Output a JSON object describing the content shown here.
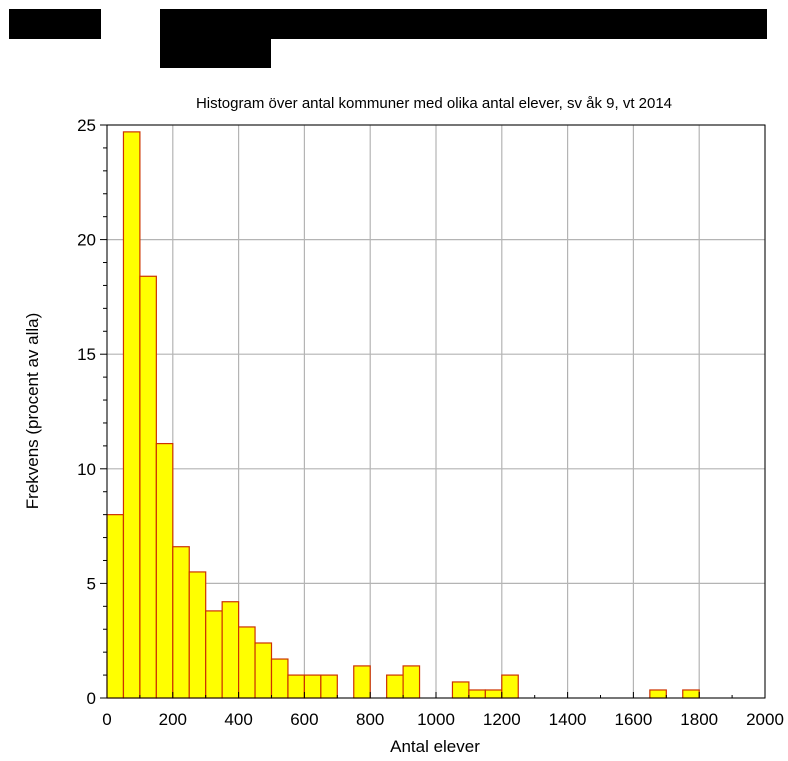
{
  "chart_data": {
    "type": "bar",
    "title": "Histogram över antal kommuner med olika antal elever, sv åk 9, vt 2014",
    "xlabel": "Antal elever",
    "ylabel": "Frekvens (procent av alla)",
    "xlim": [
      0,
      2000
    ],
    "ylim": [
      0,
      25
    ],
    "x_ticks": [
      "0",
      "200",
      "400",
      "600",
      "800",
      "1000",
      "1200",
      "1400",
      "1600",
      "1800",
      "2000"
    ],
    "y_ticks": [
      "0",
      "5",
      "10",
      "15",
      "20",
      "25"
    ],
    "grid": true,
    "bar_fill": "#ffff00",
    "bar_edge": "#cc3300",
    "bins": [
      {
        "x0": 0,
        "x1": 50,
        "value": 8.0
      },
      {
        "x0": 50,
        "x1": 100,
        "value": 24.7
      },
      {
        "x0": 100,
        "x1": 150,
        "value": 18.4
      },
      {
        "x0": 150,
        "x1": 200,
        "value": 11.1
      },
      {
        "x0": 200,
        "x1": 250,
        "value": 6.6
      },
      {
        "x0": 250,
        "x1": 300,
        "value": 5.5
      },
      {
        "x0": 300,
        "x1": 350,
        "value": 3.8
      },
      {
        "x0": 350,
        "x1": 400,
        "value": 4.2
      },
      {
        "x0": 400,
        "x1": 450,
        "value": 3.1
      },
      {
        "x0": 450,
        "x1": 500,
        "value": 2.4
      },
      {
        "x0": 500,
        "x1": 550,
        "value": 1.7
      },
      {
        "x0": 550,
        "x1": 600,
        "value": 1.0
      },
      {
        "x0": 600,
        "x1": 650,
        "value": 1.0
      },
      {
        "x0": 650,
        "x1": 700,
        "value": 1.0
      },
      {
        "x0": 750,
        "x1": 800,
        "value": 1.4
      },
      {
        "x0": 850,
        "x1": 900,
        "value": 1.0
      },
      {
        "x0": 900,
        "x1": 950,
        "value": 1.4
      },
      {
        "x0": 1050,
        "x1": 1100,
        "value": 0.7
      },
      {
        "x0": 1100,
        "x1": 1150,
        "value": 0.35
      },
      {
        "x0": 1150,
        "x1": 1200,
        "value": 0.35
      },
      {
        "x0": 1200,
        "x1": 1250,
        "value": 1.0
      },
      {
        "x0": 1650,
        "x1": 1700,
        "value": 0.35
      },
      {
        "x0": 1750,
        "x1": 1800,
        "value": 0.35
      }
    ]
  }
}
